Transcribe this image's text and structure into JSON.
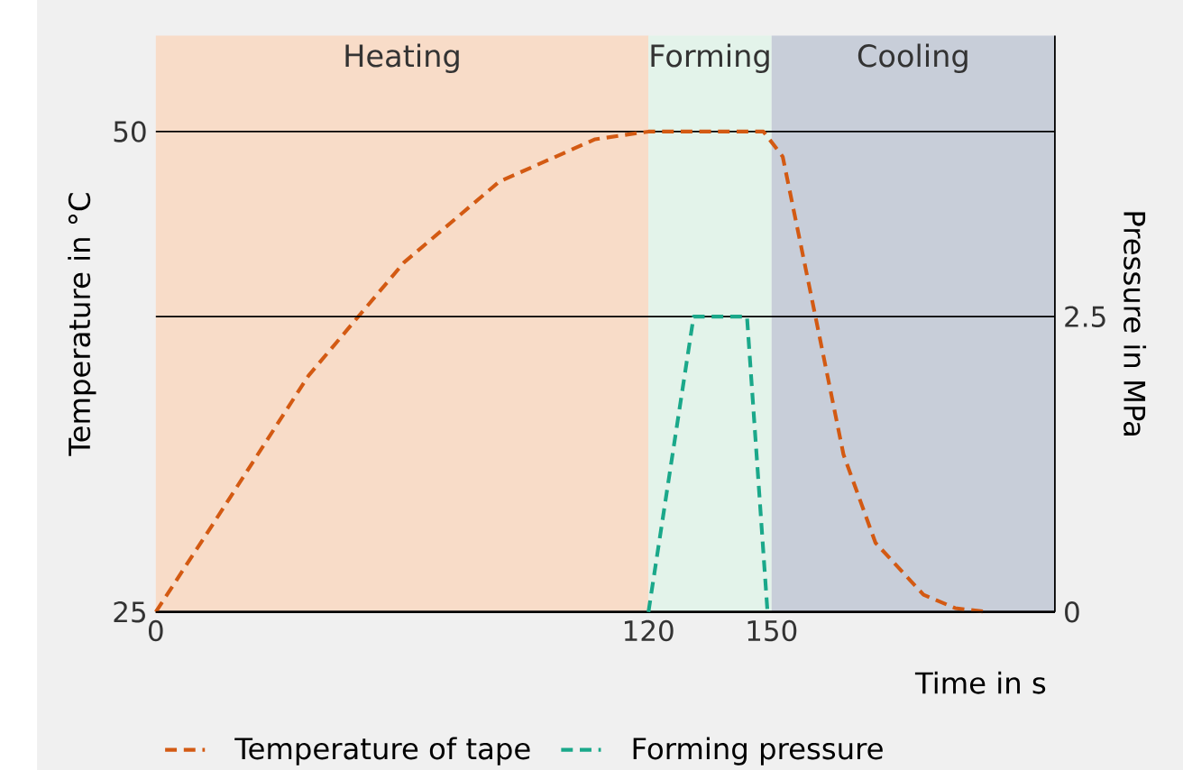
{
  "chart_data": {
    "type": "line",
    "xlabel": "Time in s",
    "ylabel": "Temperature in °C",
    "y2label": "Pressure in MPa",
    "xlim": [
      0,
      219
    ],
    "xticks": [
      0,
      120,
      150
    ],
    "ylim": [
      25,
      55
    ],
    "yticks": [
      25,
      50
    ],
    "y2lim": [
      0,
      4.88
    ],
    "y2ticks": [
      0,
      2.5
    ],
    "legend": "bottom",
    "line_style": "dashed",
    "grid": "y",
    "bands": [
      {
        "axis": "x",
        "from": 0,
        "to": 120,
        "label": "Heating",
        "color": "#f8dcc8"
      },
      {
        "axis": "x",
        "from": 120,
        "to": 150,
        "label": "Forming",
        "color": "#e3f3ea"
      },
      {
        "axis": "x",
        "from": 150,
        "to": 219,
        "label": "Cooling",
        "color": "#c8ced9"
      }
    ],
    "series": [
      {
        "name": "Temperature of tape",
        "color": "#d35a13",
        "x": [
          0,
          14,
          37.2,
          60.5,
          83.7,
          107,
          120,
          148,
          152.7,
          159.7,
          167.5,
          175.3,
          187,
          194.7,
          202.5
        ],
        "values": [
          25,
          29.6,
          37.3,
          43.2,
          47.4,
          49.6,
          50,
          50,
          48.7,
          41.4,
          33.2,
          28.6,
          25.9,
          25.2,
          25
        ]
      },
      {
        "name": "Forming pressure",
        "color": "#1aa88a",
        "axis": "y2",
        "x": [
          120,
          131,
          144,
          149
        ],
        "values": [
          0,
          2.5,
          2.5,
          0
        ]
      }
    ]
  }
}
